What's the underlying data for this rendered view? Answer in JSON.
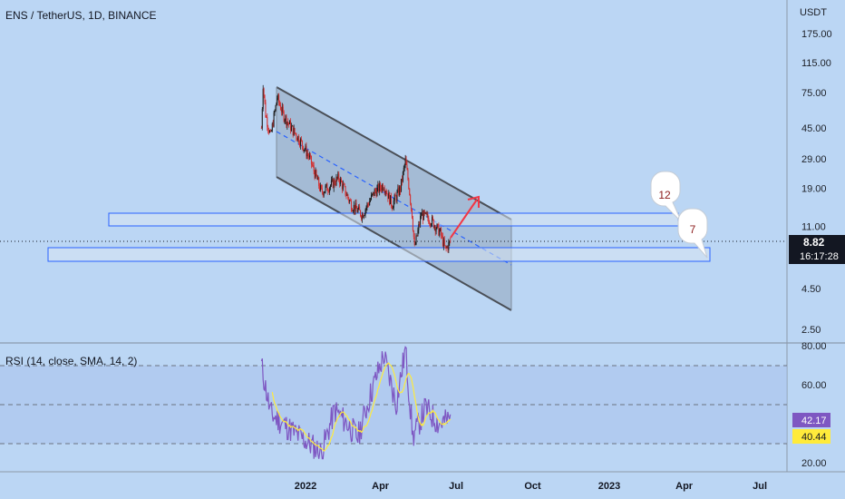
{
  "header": {
    "symbol_title": "ENS / TetherUS, 1D, BINANCE",
    "currency": "USDT"
  },
  "colors": {
    "background": "#bbd6f4",
    "up_candle": "#1b1b1b",
    "down_candle": "#d32f2f",
    "channel_fill": "#a0b6cf",
    "zone_border": "#2962ff",
    "rsi_line": "#7e57c2",
    "rsi_ma": "#ffeb3b",
    "arrow": "#f23645",
    "price_label_bg": "#131722"
  },
  "price_axis": {
    "scale": "log",
    "ticks": [
      "175.00",
      "115.00",
      "75.00",
      "45.00",
      "29.00",
      "19.00",
      "11.00",
      "4.50",
      "2.50"
    ],
    "current_price": "8.82",
    "countdown": "16:17:28"
  },
  "rsi": {
    "title": "RSI (14, close, SMA, 14, 2)",
    "ticks": [
      "80.00",
      "60.00",
      "20.00"
    ],
    "value": "42.17",
    "ma_value": "40.44"
  },
  "time_axis": {
    "labels": [
      "2022",
      "Apr",
      "Jul",
      "Oct",
      "2023",
      "Apr",
      "Jul"
    ]
  },
  "annotations": {
    "bubble_upper": "12",
    "bubble_lower": "7"
  },
  "chart_data": {
    "type": "candlestick",
    "title": "ENS / TetherUS, 1D, BINANCE",
    "yscale": "log",
    "ylim": [
      1.8,
      230
    ],
    "x_range": [
      "2021-11",
      "2023-08"
    ],
    "price_series": [
      {
        "date": "2021-11-09",
        "value": 45
      },
      {
        "date": "2021-11-11",
        "value": 85
      },
      {
        "date": "2021-11-14",
        "value": 55
      },
      {
        "date": "2021-11-20",
        "value": 40
      },
      {
        "date": "2021-11-28",
        "value": 70
      },
      {
        "date": "2021-12-05",
        "value": 55
      },
      {
        "date": "2021-12-15",
        "value": 45
      },
      {
        "date": "2021-12-25",
        "value": 38
      },
      {
        "date": "2022-01-05",
        "value": 30
      },
      {
        "date": "2022-01-20",
        "value": 18
      },
      {
        "date": "2022-02-01",
        "value": 20
      },
      {
        "date": "2022-02-10",
        "value": 22
      },
      {
        "date": "2022-02-25",
        "value": 15
      },
      {
        "date": "2022-03-10",
        "value": 13
      },
      {
        "date": "2022-03-25",
        "value": 18
      },
      {
        "date": "2022-04-05",
        "value": 20
      },
      {
        "date": "2022-04-15",
        "value": 15
      },
      {
        "date": "2022-04-25",
        "value": 19
      },
      {
        "date": "2022-05-01",
        "value": 28
      },
      {
        "date": "2022-05-05",
        "value": 20
      },
      {
        "date": "2022-05-09",
        "value": 13
      },
      {
        "date": "2022-05-12",
        "value": 8
      },
      {
        "date": "2022-05-20",
        "value": 13
      },
      {
        "date": "2022-06-01",
        "value": 12
      },
      {
        "date": "2022-06-12",
        "value": 10
      },
      {
        "date": "2022-06-18",
        "value": 7.8
      },
      {
        "date": "2022-06-24",
        "value": 8.82
      }
    ],
    "horizontal_zones": [
      {
        "label": "12",
        "low": 11.6,
        "high": 13.6
      },
      {
        "label": "7",
        "low": 6.9,
        "high": 7.9
      }
    ],
    "rsi_series": [
      {
        "date": "2021-11-09",
        "value": 70
      },
      {
        "date": "2021-11-20",
        "value": 45
      },
      {
        "date": "2021-12-05",
        "value": 40
      },
      {
        "date": "2021-12-20",
        "value": 35
      },
      {
        "date": "2022-01-05",
        "value": 30
      },
      {
        "date": "2022-01-20",
        "value": 25
      },
      {
        "date": "2022-02-05",
        "value": 47
      },
      {
        "date": "2022-02-20",
        "value": 40
      },
      {
        "date": "2022-03-05",
        "value": 33
      },
      {
        "date": "2022-03-20",
        "value": 55
      },
      {
        "date": "2022-04-05",
        "value": 75
      },
      {
        "date": "2022-04-20",
        "value": 50
      },
      {
        "date": "2022-05-01",
        "value": 78
      },
      {
        "date": "2022-05-10",
        "value": 33
      },
      {
        "date": "2022-05-25",
        "value": 48
      },
      {
        "date": "2022-06-10",
        "value": 40
      },
      {
        "date": "2022-06-24",
        "value": 42.17
      }
    ]
  }
}
